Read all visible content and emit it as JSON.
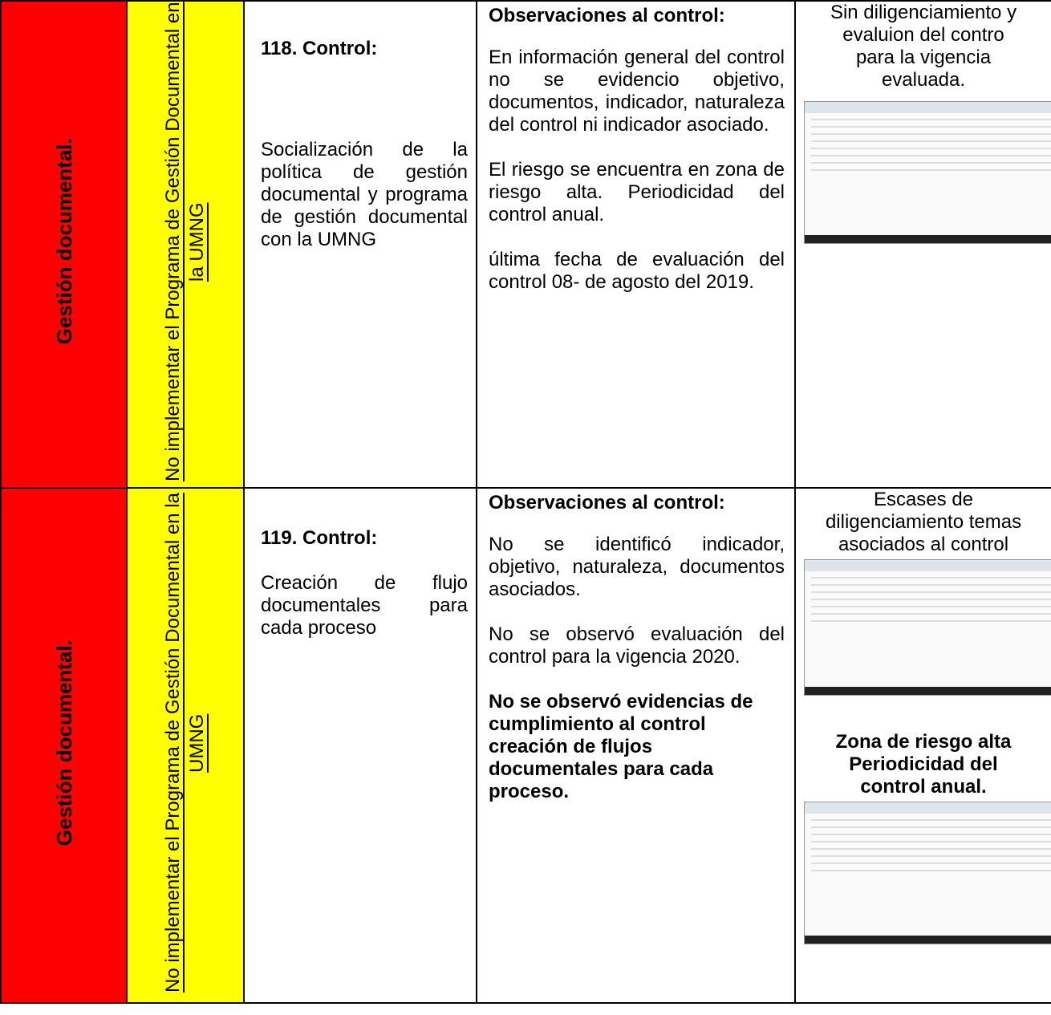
{
  "rows": [
    {
      "process": "Gestión documental.",
      "risk": "No implementar el Programa de Gestión Documental  en la UMNG",
      "control_title": "118. Control:",
      "control_text": "Socialización de la política de gestión documental y programa de gestión documental con la UMNG",
      "observations": {
        "heading": "Observaciones al control:",
        "paragraphs": [
          "En información general del control no se evidencio objetivo, documentos, indicador, naturaleza del control ni indicador asociado.",
          "El riesgo se encuentra en zona de riesgo alta. Periodicidad del control anual.",
          "última fecha de evaluación del control 08- de agosto del 2019."
        ]
      },
      "notes": [
        "Sin diligenciamiento y evaluion del contro para la vigencia evaluada."
      ]
    },
    {
      "process": "Gestión documental.",
      "risk": "No implementar el Programa de Gestión Documental  en la UMNG",
      "control_title": "119. Control:",
      "control_text": "Creación de flujo documentales para cada proceso",
      "observations": {
        "heading": "Observaciones al control:",
        "paragraphs": [
          "No se identificó indicador, objetivo, naturaleza, documentos asociados.",
          "No se observó evaluación del control para la vigencia 2020.",
          "No se observó evidencias de cumplimiento al control creación de flujos documentales para cada proceso."
        ]
      },
      "notes": [
        "Escases de diligenciamiento temas asociados al control",
        "Zona de riesgo alta Periodicidad del control anual."
      ]
    }
  ]
}
